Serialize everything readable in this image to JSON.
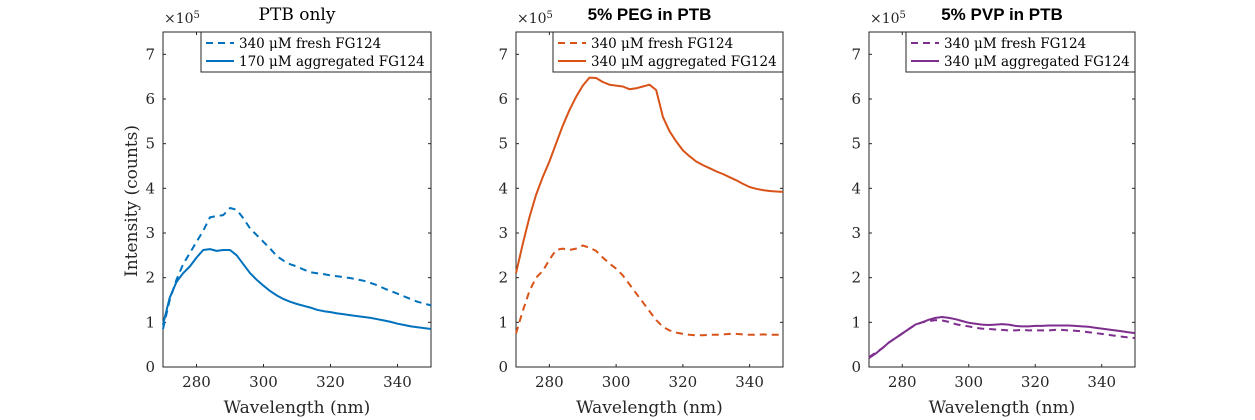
{
  "figure": {
    "ylabel": "Intensity (counts)",
    "multiplier": "×10",
    "multiplier_exp": "5"
  },
  "chart_data": [
    {
      "type": "line",
      "title": "PTB only",
      "title_style": "serif",
      "xlabel": "Wavelength (nm)",
      "ylabel": "Intensity (counts)",
      "xlim": [
        270,
        350
      ],
      "ylim": [
        0,
        7.5
      ],
      "xticks": [
        "280",
        "300",
        "320",
        "340"
      ],
      "yticks": [
        "0",
        "1",
        "2",
        "3",
        "4",
        "5",
        "6",
        "7"
      ],
      "y_scale_label": "×10^5",
      "grid": false,
      "legend_position": "top-right",
      "color": "#0072bd",
      "series": [
        {
          "name": "340 μM fresh FG124",
          "style": "dashed",
          "x": [
            270,
            272,
            274,
            276,
            278,
            280,
            282,
            284,
            286,
            288,
            290,
            292,
            294,
            296,
            298,
            300,
            302,
            304,
            306,
            308,
            310,
            312,
            314,
            316,
            318,
            320,
            322,
            324,
            326,
            328,
            330,
            332,
            334,
            336,
            338,
            340,
            342,
            344,
            346,
            348,
            350
          ],
          "y": [
            0.85,
            1.5,
            1.95,
            2.3,
            2.55,
            2.8,
            3.05,
            3.35,
            3.38,
            3.4,
            3.56,
            3.52,
            3.33,
            3.1,
            2.95,
            2.8,
            2.65,
            2.48,
            2.38,
            2.3,
            2.25,
            2.18,
            2.12,
            2.1,
            2.08,
            2.05,
            2.03,
            2.01,
            1.99,
            1.96,
            1.93,
            1.88,
            1.83,
            1.76,
            1.7,
            1.64,
            1.58,
            1.52,
            1.46,
            1.42,
            1.38
          ]
        },
        {
          "name": "170 μM aggregated FG124",
          "style": "solid",
          "x": [
            270,
            272,
            274,
            276,
            278,
            280,
            282,
            284,
            286,
            288,
            290,
            292,
            294,
            296,
            298,
            300,
            302,
            304,
            306,
            308,
            310,
            312,
            314,
            316,
            318,
            320,
            322,
            324,
            326,
            328,
            330,
            332,
            334,
            336,
            338,
            340,
            342,
            344,
            346,
            348,
            350
          ],
          "y": [
            0.95,
            1.55,
            1.9,
            2.1,
            2.25,
            2.45,
            2.62,
            2.64,
            2.6,
            2.62,
            2.62,
            2.5,
            2.3,
            2.1,
            1.95,
            1.82,
            1.7,
            1.6,
            1.52,
            1.46,
            1.41,
            1.37,
            1.33,
            1.28,
            1.25,
            1.23,
            1.2,
            1.18,
            1.16,
            1.14,
            1.12,
            1.1,
            1.07,
            1.04,
            1.01,
            0.97,
            0.94,
            0.91,
            0.89,
            0.87,
            0.85
          ]
        }
      ]
    },
    {
      "type": "line",
      "title": "5% PEG in PTB",
      "title_style": "sans-bold",
      "xlabel": "Wavelength (nm)",
      "xlim": [
        270,
        350
      ],
      "ylim": [
        0,
        7.5
      ],
      "xticks": [
        "280",
        "300",
        "320",
        "340"
      ],
      "yticks": [
        "0",
        "1",
        "2",
        "3",
        "4",
        "5",
        "6",
        "7"
      ],
      "y_scale_label": "×10^5",
      "grid": false,
      "legend_position": "top-right",
      "color": "#d95319",
      "series": [
        {
          "name": "340 μM fresh FG124",
          "style": "dashed",
          "x": [
            270,
            272,
            274,
            276,
            278,
            280,
            282,
            284,
            286,
            288,
            290,
            292,
            294,
            296,
            298,
            300,
            302,
            304,
            306,
            308,
            310,
            312,
            314,
            316,
            318,
            320,
            322,
            324,
            326,
            328,
            330,
            332,
            334,
            336,
            338,
            340,
            342,
            344,
            346,
            348,
            350
          ],
          "y": [
            0.75,
            1.25,
            1.7,
            2.0,
            2.15,
            2.4,
            2.62,
            2.65,
            2.62,
            2.65,
            2.72,
            2.67,
            2.6,
            2.45,
            2.32,
            2.2,
            2.05,
            1.85,
            1.65,
            1.45,
            1.25,
            1.05,
            0.9,
            0.82,
            0.77,
            0.74,
            0.72,
            0.71,
            0.71,
            0.72,
            0.72,
            0.73,
            0.74,
            0.74,
            0.73,
            0.72,
            0.72,
            0.73,
            0.72,
            0.72,
            0.72
          ]
        },
        {
          "name": "340 μM aggregated FG124",
          "style": "solid",
          "x": [
            270,
            272,
            274,
            276,
            278,
            280,
            282,
            284,
            286,
            288,
            290,
            292,
            294,
            296,
            298,
            300,
            302,
            304,
            306,
            308,
            310,
            312,
            314,
            316,
            318,
            320,
            322,
            324,
            326,
            328,
            330,
            332,
            334,
            336,
            338,
            340,
            342,
            344,
            346,
            348,
            350
          ],
          "y": [
            2.1,
            2.75,
            3.35,
            3.85,
            4.25,
            4.6,
            5.0,
            5.4,
            5.75,
            6.05,
            6.3,
            6.48,
            6.47,
            6.38,
            6.32,
            6.3,
            6.28,
            6.22,
            6.24,
            6.28,
            6.32,
            6.2,
            5.6,
            5.28,
            5.05,
            4.85,
            4.72,
            4.6,
            4.52,
            4.45,
            4.38,
            4.32,
            4.25,
            4.18,
            4.1,
            4.03,
            3.99,
            3.96,
            3.94,
            3.93,
            3.92
          ]
        }
      ]
    },
    {
      "type": "line",
      "title": "5% PVP in PTB",
      "title_style": "sans-bold",
      "xlabel": "Wavelength (nm)",
      "xlim": [
        270,
        350
      ],
      "ylim": [
        0,
        7.5
      ],
      "xticks": [
        "280",
        "300",
        "320",
        "340"
      ],
      "yticks": [
        "0",
        "1",
        "2",
        "3",
        "4",
        "5",
        "6",
        "7"
      ],
      "y_scale_label": "×10^5",
      "grid": false,
      "legend_position": "top-right",
      "color": "#7e2f8e",
      "series": [
        {
          "name": "340 μM fresh FG124",
          "style": "dashed",
          "x": [
            270,
            272,
            274,
            276,
            278,
            280,
            282,
            284,
            286,
            288,
            290,
            292,
            294,
            296,
            298,
            300,
            302,
            304,
            306,
            308,
            310,
            312,
            314,
            316,
            318,
            320,
            322,
            324,
            326,
            328,
            330,
            332,
            334,
            336,
            338,
            340,
            342,
            344,
            346,
            348,
            350
          ],
          "y": [
            0.22,
            0.32,
            0.42,
            0.55,
            0.65,
            0.75,
            0.85,
            0.95,
            1.0,
            1.03,
            1.05,
            1.04,
            1.01,
            0.96,
            0.93,
            0.91,
            0.88,
            0.86,
            0.85,
            0.84,
            0.83,
            0.82,
            0.82,
            0.83,
            0.82,
            0.82,
            0.82,
            0.82,
            0.83,
            0.83,
            0.82,
            0.81,
            0.8,
            0.78,
            0.76,
            0.74,
            0.72,
            0.7,
            0.68,
            0.66,
            0.65
          ]
        },
        {
          "name": "340 μM aggregated FG124",
          "style": "solid",
          "x": [
            270,
            272,
            274,
            276,
            278,
            280,
            282,
            284,
            286,
            288,
            290,
            292,
            294,
            296,
            298,
            300,
            302,
            304,
            306,
            308,
            310,
            312,
            314,
            316,
            318,
            320,
            322,
            324,
            326,
            328,
            330,
            332,
            334,
            336,
            338,
            340,
            342,
            344,
            346,
            348,
            350
          ],
          "y": [
            0.2,
            0.3,
            0.42,
            0.55,
            0.65,
            0.75,
            0.85,
            0.95,
            1.0,
            1.06,
            1.1,
            1.12,
            1.1,
            1.07,
            1.03,
            0.99,
            0.97,
            0.95,
            0.94,
            0.95,
            0.96,
            0.95,
            0.92,
            0.91,
            0.91,
            0.92,
            0.92,
            0.93,
            0.93,
            0.93,
            0.93,
            0.92,
            0.91,
            0.9,
            0.88,
            0.86,
            0.84,
            0.82,
            0.8,
            0.78,
            0.76
          ]
        }
      ]
    }
  ]
}
